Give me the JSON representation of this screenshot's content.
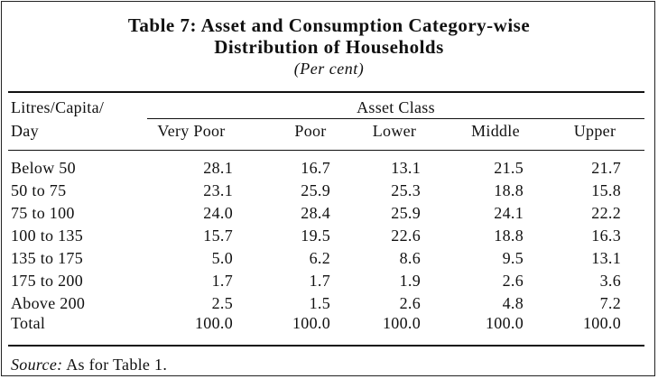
{
  "title_line1": "Table 7: Asset and Consumption Category-wise",
  "title_line2": "Distribution of Households",
  "subtitle": "(Per cent)",
  "row_header_line1": "Litres/Capita/",
  "row_header_line2": "Day",
  "group_header": "Asset Class",
  "columns": [
    "Very Poor",
    "Poor",
    "Lower",
    "Middle",
    "Upper"
  ],
  "rows": [
    {
      "label": "Below 50",
      "values": [
        "28.1",
        "16.7",
        "13.1",
        "21.5",
        "21.7"
      ]
    },
    {
      "label": "50 to 75",
      "values": [
        "23.1",
        "25.9",
        "25.3",
        "18.8",
        "15.8"
      ]
    },
    {
      "label": "75 to 100",
      "values": [
        "24.0",
        "28.4",
        "25.9",
        "24.1",
        "22.2"
      ]
    },
    {
      "label": "100 to 135",
      "values": [
        "15.7",
        "19.5",
        "22.6",
        "18.8",
        "16.3"
      ]
    },
    {
      "label": "135 to 175",
      "values": [
        "5.0",
        "6.2",
        "8.6",
        "9.5",
        "13.1"
      ]
    },
    {
      "label": "175 to 200",
      "values": [
        "1.7",
        "1.7",
        "1.9",
        "2.6",
        "3.6"
      ]
    },
    {
      "label": "Above 200",
      "values": [
        "2.5",
        "1.5",
        "2.6",
        "4.8",
        "7.2"
      ]
    },
    {
      "label": "Total",
      "values": [
        "100.0",
        "100.0",
        "100.0",
        "100.0",
        "100.0"
      ]
    }
  ],
  "source_label": "Source:",
  "source_text": "As for Table 1."
}
